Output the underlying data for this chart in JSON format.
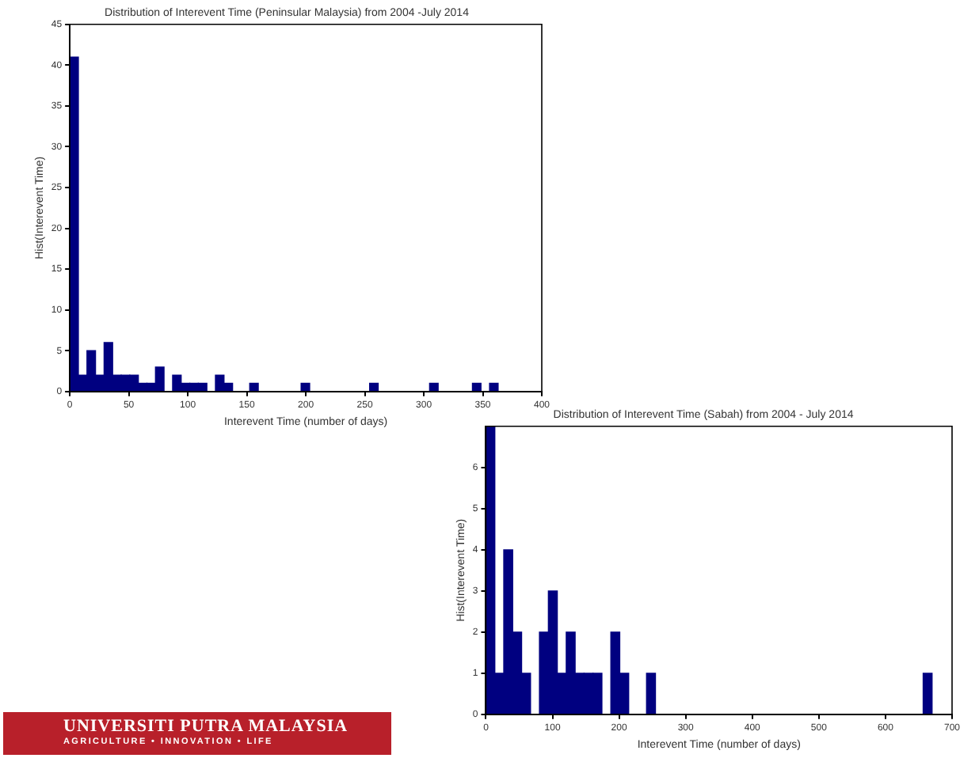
{
  "chart_data": [
    {
      "type": "histogram",
      "title": "Distribution of Interevent Time (Peninsular Malaysia) from 2004 -July 2014",
      "xlabel": "Interevent Time (number of days)",
      "ylabel": "Hist(Interevent Time)",
      "bins": [
        0,
        7.26,
        14.52,
        21.78,
        29.04,
        36.3,
        43.56,
        50.82,
        58.08,
        65.34,
        72.6,
        79.86,
        87.12,
        94.38,
        101.64,
        108.9,
        116.16,
        123.42,
        130.68,
        137.94,
        145.2,
        152.46,
        159.72,
        166.98,
        174.24,
        181.5,
        188.76,
        196.02,
        203.28,
        210.54,
        217.8,
        225.06,
        232.32,
        239.58,
        246.84,
        254.1,
        261.36,
        268.62,
        275.88,
        283.14,
        290.4,
        297.66,
        304.92,
        312.18,
        319.44,
        326.7,
        333.96,
        341.22,
        348.48,
        355.74,
        363
      ],
      "values": [
        41,
        2,
        5,
        2,
        6,
        2,
        2,
        2,
        1,
        1,
        3,
        0,
        2,
        1,
        1,
        1,
        0,
        2,
        1,
        0,
        0,
        1,
        0,
        0,
        0,
        0,
        0,
        1,
        0,
        0,
        0,
        0,
        0,
        0,
        0,
        1,
        0,
        0,
        0,
        0,
        0,
        0,
        1,
        0,
        0,
        0,
        0,
        1,
        0,
        1
      ],
      "color": "#000080",
      "xlim": [
        0,
        400
      ],
      "xticks": [
        0,
        50,
        100,
        150,
        200,
        250,
        300,
        350,
        400
      ],
      "ylim": [
        0,
        45
      ],
      "yticks": [
        0,
        5,
        10,
        15,
        20,
        25,
        30,
        35,
        40,
        45
      ],
      "grid": false,
      "legend": false
    },
    {
      "type": "histogram",
      "title": "Distribution of Interevent Time (Sabah) from 2004 - July 2014",
      "xlabel": "Interevent Time (number of days)",
      "ylabel": "Hist(Interevent Time)",
      "bins": [
        0,
        13.4,
        26.8,
        40.2,
        53.6,
        67,
        80.4,
        93.8,
        107.2,
        120.6,
        134,
        147.4,
        160.8,
        174.2,
        187.6,
        201,
        214.4,
        227.8,
        241.2,
        254.6,
        268,
        281.4,
        294.8,
        308.2,
        321.6,
        335,
        348.4,
        361.8,
        375.2,
        388.6,
        402,
        415.4,
        428.8,
        442.2,
        455.6,
        469,
        482.4,
        495.8,
        509.2,
        522.6,
        536,
        549.4,
        562.8,
        576.2,
        589.6,
        603,
        616.4,
        629.8,
        643.2,
        656.6,
        670
      ],
      "values": [
        7,
        1,
        4,
        2,
        1,
        0,
        2,
        3,
        1,
        2,
        1,
        1,
        1,
        0,
        2,
        1,
        0,
        0,
        1,
        0,
        0,
        0,
        0,
        0,
        0,
        0,
        0,
        0,
        0,
        0,
        0,
        0,
        0,
        0,
        0,
        0,
        0,
        0,
        0,
        0,
        0,
        0,
        0,
        0,
        0,
        0,
        0,
        0,
        0,
        1
      ],
      "color": "#000080",
      "xlim": [
        0,
        700
      ],
      "xticks": [
        0,
        100,
        200,
        300,
        400,
        500,
        600,
        700
      ],
      "ylim": [
        0,
        7
      ],
      "yticks": [
        0,
        1,
        2,
        3,
        4,
        5,
        6
      ],
      "grid": false,
      "legend": false
    },
    {
      "type": "other",
      "title": "UNIVERSITI PUTRA MALAYSIA",
      "subtitle": "AGRICULTURE • INNOVATION • LIFE"
    }
  ]
}
